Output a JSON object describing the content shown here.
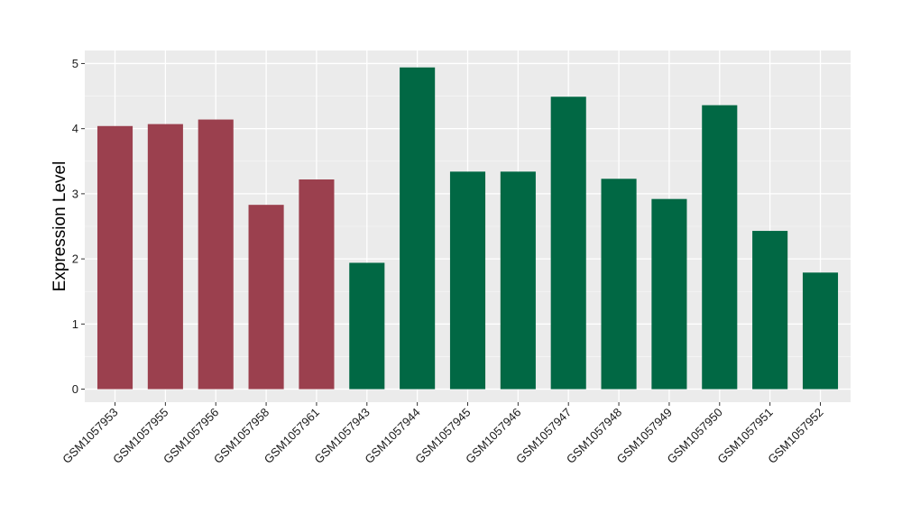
{
  "chart_data": {
    "type": "bar",
    "title": "",
    "xlabel": "",
    "ylabel": "Expression Level",
    "ylim": [
      -0.2,
      5.2
    ],
    "yticks": [
      0,
      1,
      2,
      3,
      4,
      5
    ],
    "grid": true,
    "legend": "none",
    "categories": [
      "GSM1057953",
      "GSM1057955",
      "GSM1057956",
      "GSM1057958",
      "GSM1057961",
      "GSM1057943",
      "GSM1057944",
      "GSM1057945",
      "GSM1057946",
      "GSM1057947",
      "GSM1057948",
      "GSM1057949",
      "GSM1057950",
      "GSM1057951",
      "GSM1057952"
    ],
    "values": [
      4.04,
      4.07,
      4.14,
      2.83,
      3.22,
      1.94,
      4.94,
      3.34,
      3.34,
      4.49,
      3.23,
      2.92,
      4.36,
      2.43,
      1.79
    ],
    "groups": [
      0,
      0,
      0,
      0,
      0,
      1,
      1,
      1,
      1,
      1,
      1,
      1,
      1,
      1,
      1
    ],
    "group_colors": [
      "#9b404e",
      "#016844"
    ]
  },
  "colors": {
    "panel_background": "#ebebeb",
    "grid_major": "#ffffff",
    "grid_minor": "#f5f5f5",
    "tick_text": "#1a1a1a"
  }
}
